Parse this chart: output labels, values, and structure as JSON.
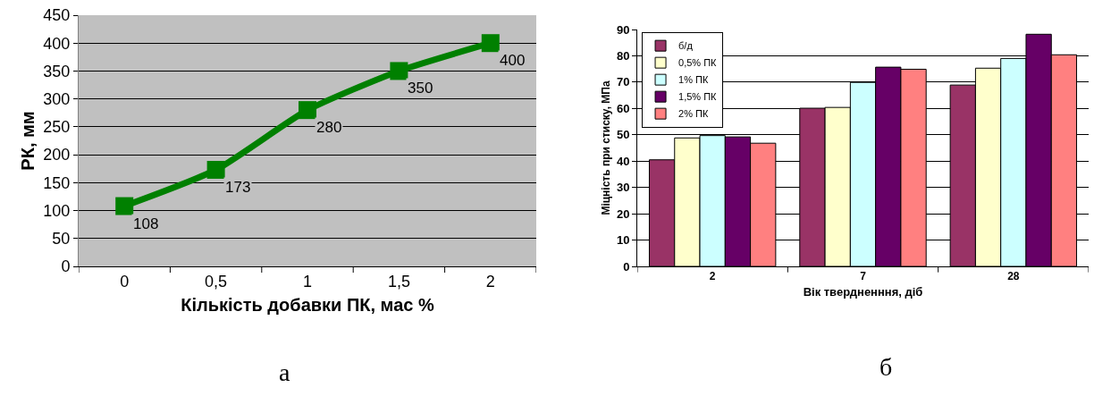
{
  "chart_data": [
    {
      "type": "line",
      "xlabel": "Кількість добавки ПК, мас %",
      "ylabel": "РК, мм",
      "categories": [
        "0",
        "0,5",
        "1",
        "1,5",
        "2"
      ],
      "series": [
        {
          "color": "#008000",
          "values": [
            108,
            173,
            280,
            350,
            400
          ]
        }
      ],
      "ylim": [
        0,
        450
      ],
      "yticks": [
        0,
        50,
        100,
        150,
        200,
        250,
        300,
        350,
        400,
        450
      ],
      "grid": "y",
      "marker": "square",
      "line_style": "solid",
      "data_labels": true,
      "legend": false,
      "annotations": [
        "а"
      ]
    },
    {
      "type": "bar",
      "xlabel": "Вік твердненння, діб",
      "ylabel": "Міцність при стиску, МПа",
      "categories": [
        "2",
        "7",
        "28"
      ],
      "series": [
        {
          "name": "б/д",
          "color": "#993366",
          "values": [
            40.5,
            60.1,
            68.9
          ]
        },
        {
          "name": "0,5% ПК",
          "color": "#ffffcc",
          "values": [
            48.8,
            60.4,
            75.3
          ]
        },
        {
          "name": "1% ПК",
          "color": "#ccffff",
          "values": [
            49.7,
            69.9,
            79.0
          ]
        },
        {
          "name": "1,5% ПК",
          "color": "#660066",
          "values": [
            49.2,
            75.7,
            88.2
          ]
        },
        {
          "name": "2% ПК",
          "color": "#ff8080",
          "values": [
            46.8,
            74.9,
            80.4
          ]
        }
      ],
      "ylim": [
        0,
        90
      ],
      "yticks": [
        0,
        10,
        20,
        30,
        40,
        50,
        60,
        70,
        80,
        90
      ],
      "grid": "y",
      "legend": "top left",
      "annotations": [
        "б"
      ]
    }
  ]
}
